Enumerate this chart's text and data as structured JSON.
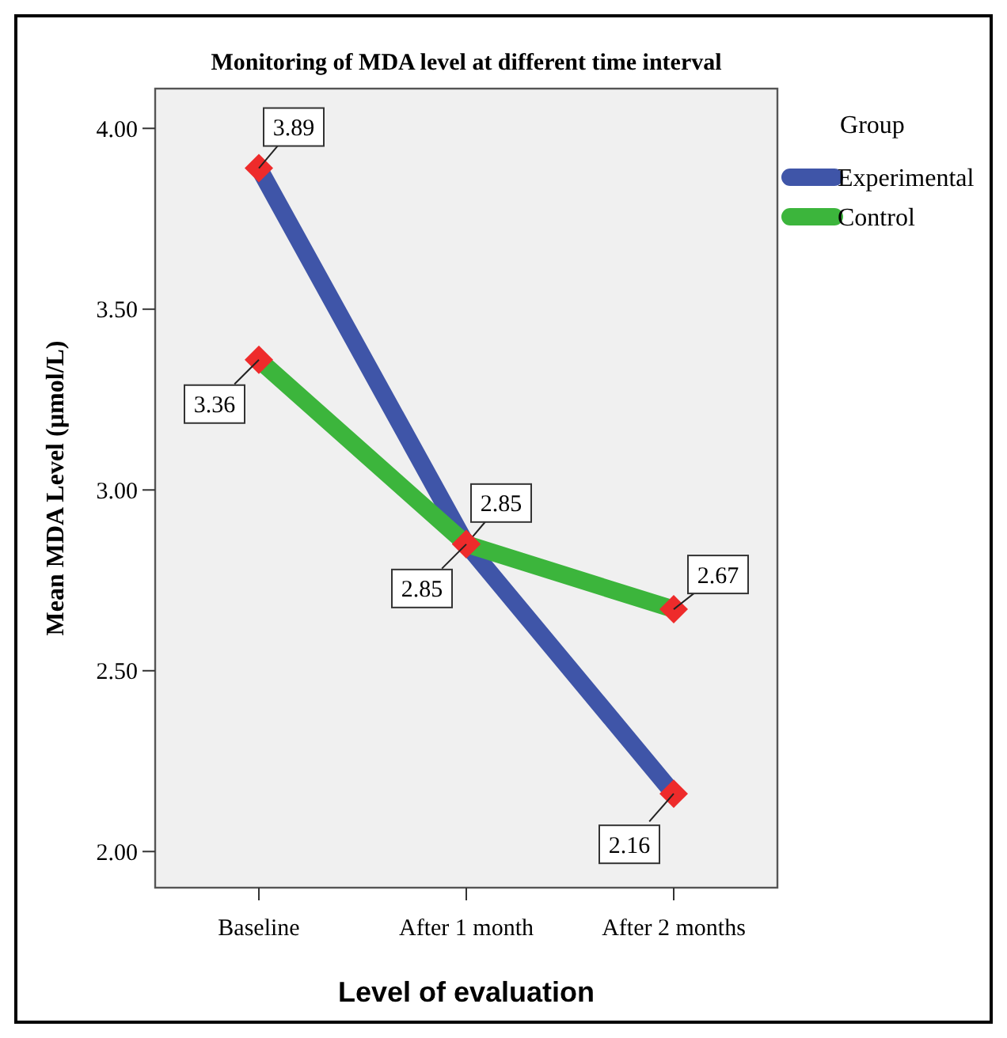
{
  "chart_data": {
    "type": "line",
    "title": "Monitoring of MDA level at different time interval",
    "xlabel": "Level of evaluation",
    "ylabel": "Mean MDA Level (µmol/L)",
    "legend_title": "Group",
    "categories": [
      "Baseline",
      "After 1 month",
      "After 2 months"
    ],
    "series": [
      {
        "name": "Experimental",
        "color": "#3f55a8",
        "values": [
          3.89,
          2.85,
          2.16
        ]
      },
      {
        "name": "Control",
        "color": "#3cb53c",
        "values": [
          3.36,
          2.85,
          2.67
        ]
      }
    ],
    "ylim": [
      1.9,
      4.11
    ],
    "yticks": [
      {
        "value": 2,
        "label": "2.00"
      },
      {
        "value": 2.5,
        "label": "2.50"
      },
      {
        "value": 3,
        "label": "3.00"
      },
      {
        "value": 3.5,
        "label": "3.50"
      },
      {
        "value": 4,
        "label": "4.00"
      }
    ],
    "grid": false,
    "legend": "top right",
    "marker": "diamond",
    "line_style": "solid",
    "data_labels": true
  }
}
